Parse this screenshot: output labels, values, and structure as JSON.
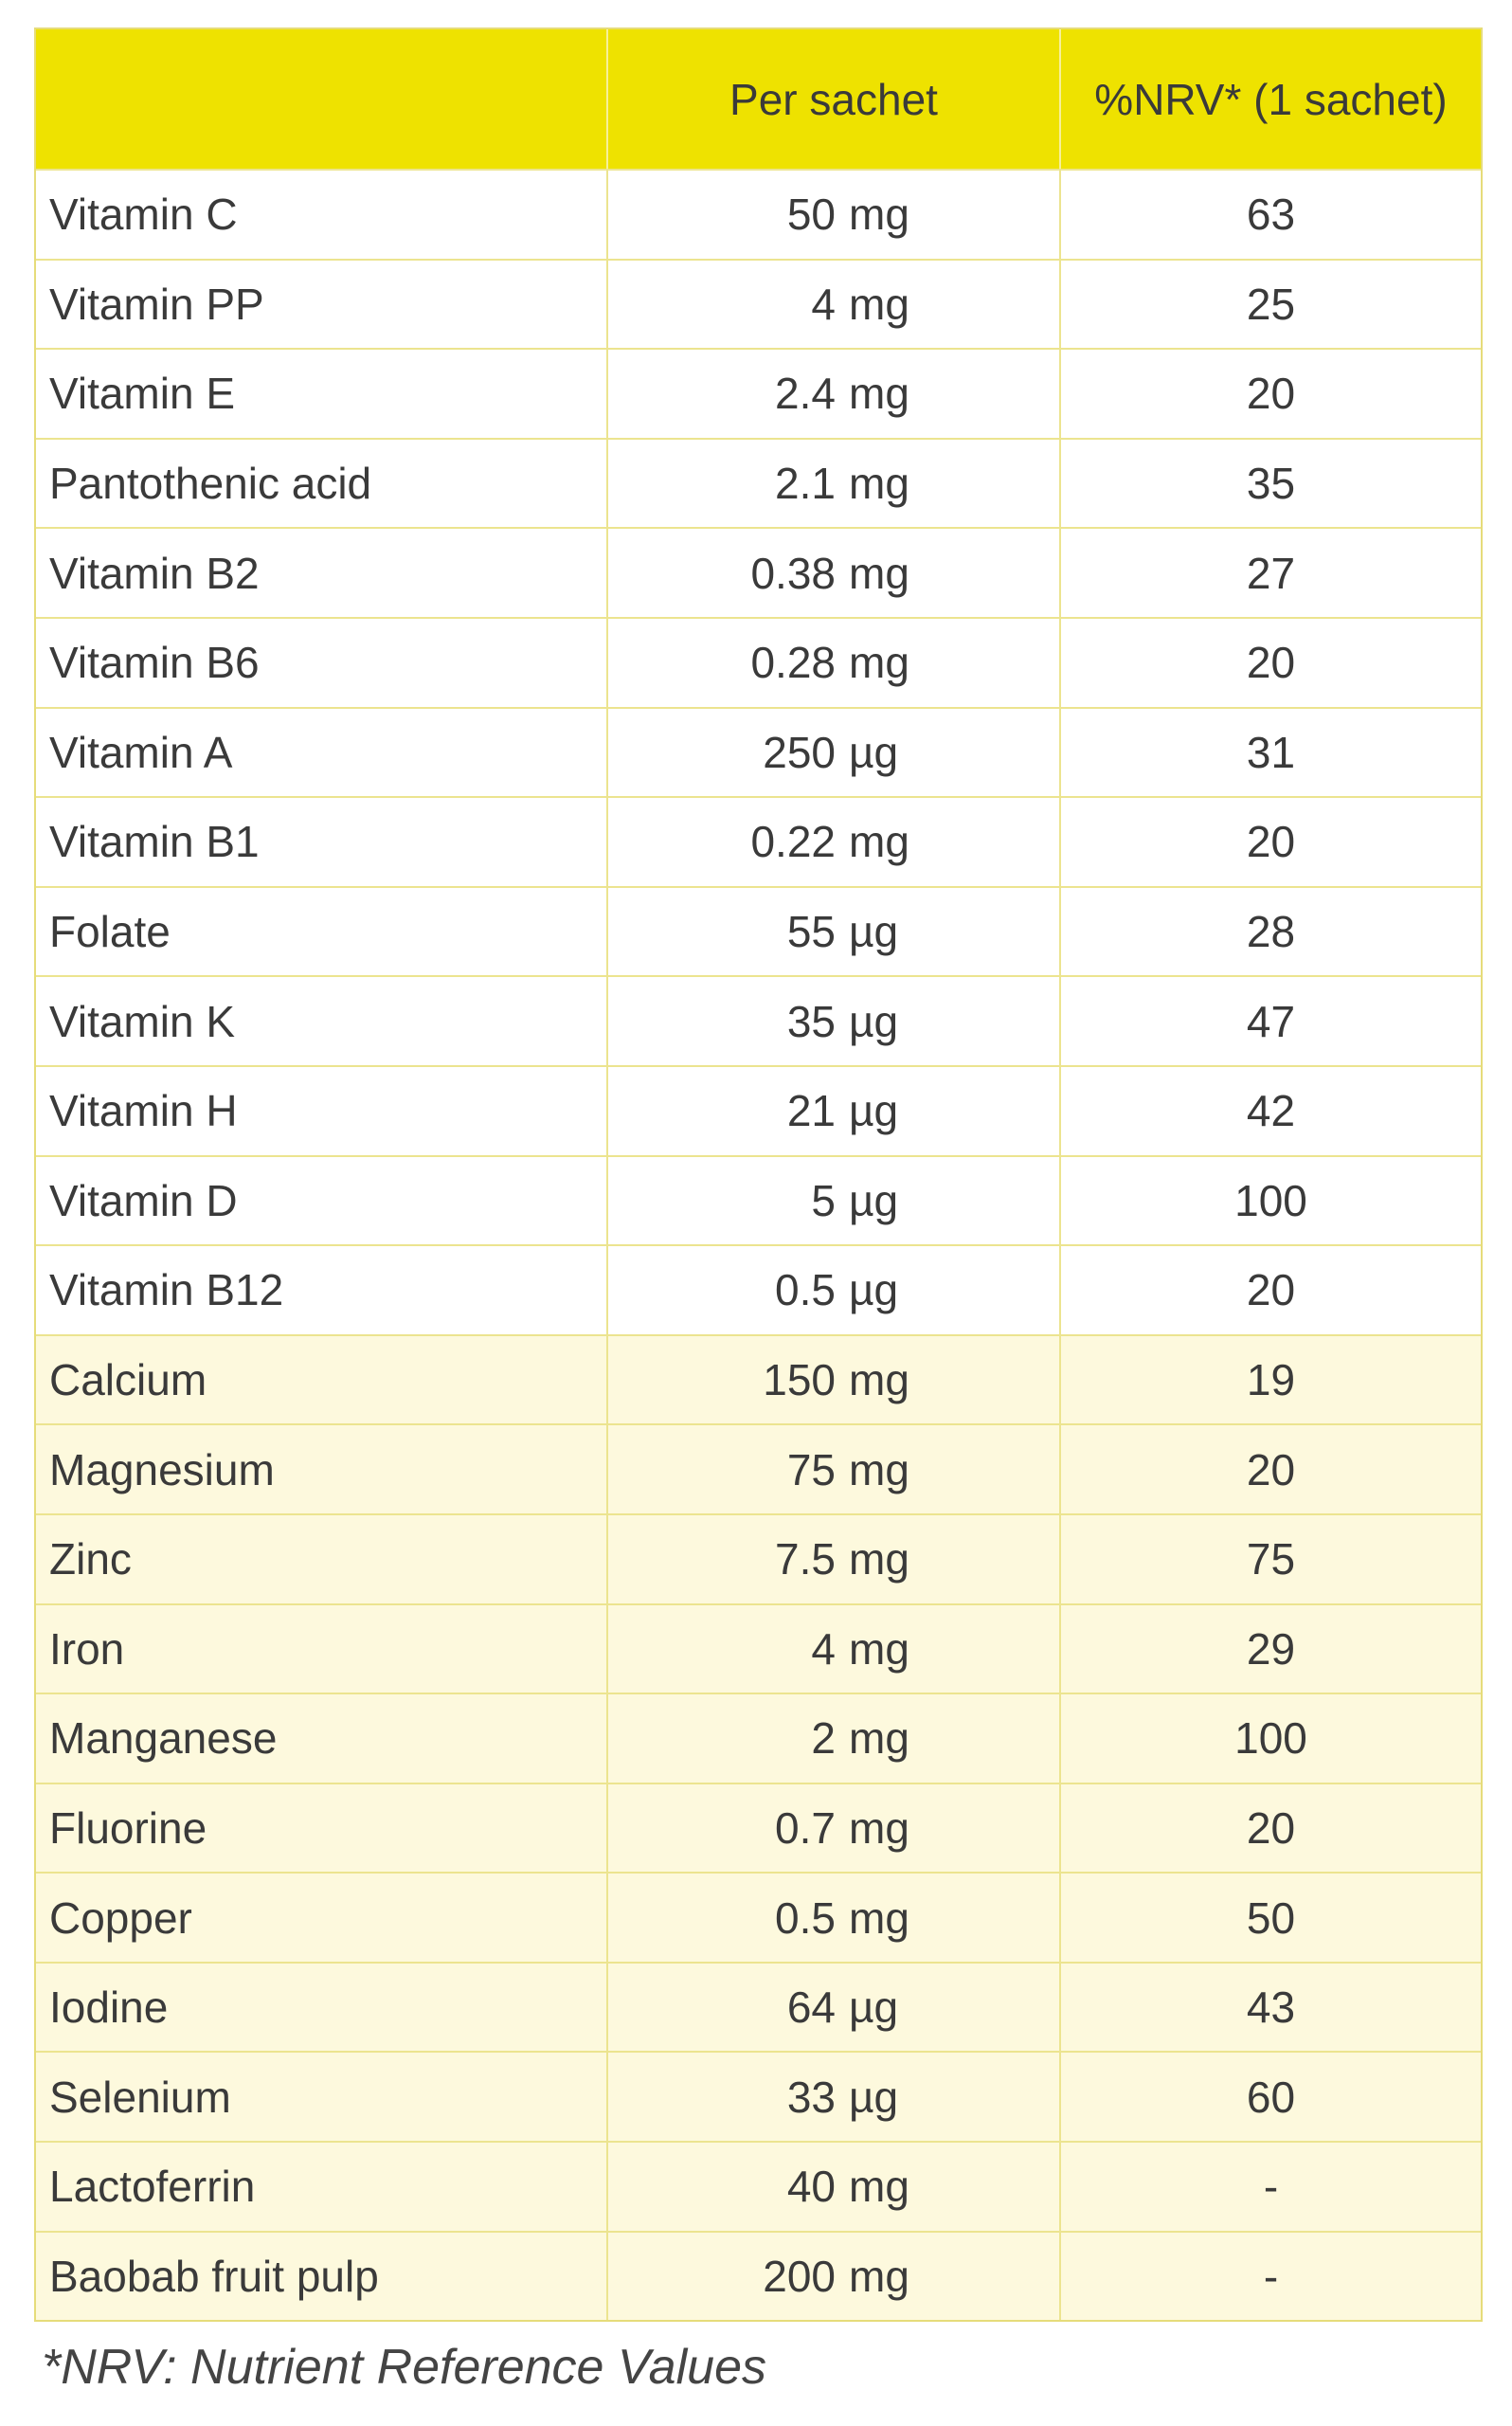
{
  "table": {
    "header": {
      "per_sachet": "Per sachet",
      "nrv": "%NRV* (1 sachet)"
    },
    "rows": [
      [
        "Vitamin C",
        "50",
        "mg",
        "63"
      ],
      [
        "Vitamin PP",
        "4",
        "mg",
        "25"
      ],
      [
        "Vitamin E",
        "2.4",
        "mg",
        "20"
      ],
      [
        "Pantothenic acid",
        "2.1",
        "mg",
        "35"
      ],
      [
        "Vitamin B2",
        "0.38",
        "mg",
        "27"
      ],
      [
        "Vitamin B6",
        "0.28",
        "mg",
        "20"
      ],
      [
        "Vitamin A",
        "250",
        "µg",
        "31"
      ],
      [
        "Vitamin B1",
        "0.22",
        "mg",
        "20"
      ],
      [
        "Folate",
        "55",
        "µg",
        "28"
      ],
      [
        "Vitamin K",
        "35",
        "µg",
        "47"
      ],
      [
        "Vitamin H",
        "21",
        "µg",
        "42"
      ],
      [
        "Vitamin D",
        "5",
        "µg",
        "100"
      ],
      [
        "Vitamin B12",
        "0.5",
        "µg",
        "20"
      ],
      [
        "Calcium",
        "150",
        "mg",
        "19"
      ],
      [
        "Magnesium",
        "75",
        "mg",
        "20"
      ],
      [
        "Zinc",
        "7.5",
        "mg",
        "75"
      ],
      [
        "Iron",
        "4",
        "mg",
        "29"
      ],
      [
        "Manganese",
        "2",
        "mg",
        "100"
      ],
      [
        "Fluorine",
        "0.7",
        "mg",
        "20"
      ],
      [
        "Copper",
        "0.5",
        "mg",
        "50"
      ],
      [
        "Iodine",
        "64",
        "µg",
        "43"
      ],
      [
        "Selenium",
        "33",
        "µg",
        "60"
      ],
      [
        "Lactoferrin",
        "40",
        "mg",
        "-"
      ],
      [
        "Baobab fruit pulp",
        "200",
        "mg",
        "-"
      ]
    ]
  },
  "footnote": "*NRV: Nutrient Reference Values"
}
